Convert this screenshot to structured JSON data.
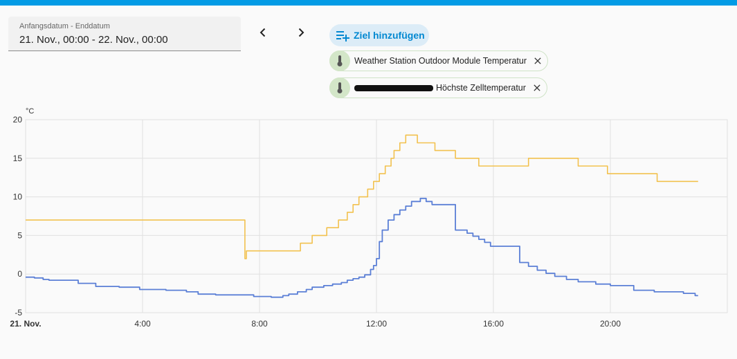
{
  "date_range": {
    "label": "Anfangsdatum - Enddatum",
    "value": "21. Nov., 00:00 - 22. Nov., 00:00"
  },
  "nav": {
    "prev_icon": "chevron-left-icon",
    "next_icon": "chevron-right-icon"
  },
  "add_target": {
    "label": "Ziel hinzufügen",
    "icon": "playlist-plus-icon"
  },
  "targets": [
    {
      "label": "Weather Station Outdoor Module Temperatur",
      "icon": "thermometer-icon",
      "remove_icon": "close-icon"
    },
    {
      "label_prefix": "",
      "label": "Höchste Zelltemperatur",
      "icon": "thermometer-icon",
      "remove_icon": "close-icon"
    }
  ],
  "colors": {
    "accent": "#039be5",
    "series_orange": "#f2c14e",
    "series_blue": "#5b7fd6"
  },
  "chart_data": {
    "type": "line",
    "ylabel": "°C",
    "ylim": [
      -5,
      20
    ],
    "yticks": [
      "20",
      "15",
      "10",
      "5",
      "0",
      "-5"
    ],
    "xlim": [
      0,
      24
    ],
    "xticks": [
      "21. Nov.",
      "4:00",
      "8:00",
      "12:00",
      "16:00",
      "20:00"
    ],
    "grid": true,
    "series": [
      {
        "step": true,
        "points": [
          [
            0,
            7
          ],
          [
            7.5,
            7
          ],
          [
            7.5,
            2
          ],
          [
            7.55,
            3
          ],
          [
            9.4,
            3
          ],
          [
            9.4,
            4
          ],
          [
            9.8,
            4
          ],
          [
            9.8,
            5
          ],
          [
            10.3,
            5
          ],
          [
            10.3,
            6
          ],
          [
            10.7,
            6
          ],
          [
            10.7,
            7
          ],
          [
            11.0,
            7
          ],
          [
            11.0,
            8
          ],
          [
            11.2,
            8
          ],
          [
            11.2,
            9
          ],
          [
            11.4,
            9
          ],
          [
            11.4,
            10
          ],
          [
            11.7,
            10
          ],
          [
            11.7,
            11
          ],
          [
            11.9,
            11
          ],
          [
            11.9,
            12
          ],
          [
            12.1,
            12
          ],
          [
            12.1,
            13
          ],
          [
            12.3,
            13
          ],
          [
            12.3,
            14
          ],
          [
            12.5,
            14
          ],
          [
            12.5,
            15
          ],
          [
            12.6,
            15
          ],
          [
            12.6,
            16
          ],
          [
            12.8,
            16
          ],
          [
            12.8,
            17
          ],
          [
            13.0,
            17
          ],
          [
            13.0,
            18
          ],
          [
            13.4,
            18
          ],
          [
            13.4,
            17
          ],
          [
            14.0,
            17
          ],
          [
            14.0,
            16
          ],
          [
            14.7,
            16
          ],
          [
            14.7,
            15
          ],
          [
            15.5,
            15
          ],
          [
            15.5,
            14
          ],
          [
            17.2,
            14
          ],
          [
            17.2,
            15
          ],
          [
            18.9,
            15
          ],
          [
            18.9,
            14
          ],
          [
            19.9,
            14
          ],
          [
            19.9,
            13
          ],
          [
            21.6,
            13
          ],
          [
            21.6,
            12
          ],
          [
            23,
            12
          ]
        ]
      },
      {
        "step": true,
        "points": [
          [
            0,
            -0.4
          ],
          [
            0.3,
            -0.5
          ],
          [
            0.6,
            -0.7
          ],
          [
            0.8,
            -0.8
          ],
          [
            1.8,
            -0.9
          ],
          [
            1.8,
            -1.2
          ],
          [
            2.4,
            -1.2
          ],
          [
            2.4,
            -1.6
          ],
          [
            3.2,
            -1.7
          ],
          [
            3.9,
            -1.7
          ],
          [
            3.9,
            -2.0
          ],
          [
            4.8,
            -2.1
          ],
          [
            5.5,
            -2.3
          ],
          [
            5.9,
            -2.3
          ],
          [
            5.9,
            -2.6
          ],
          [
            6.5,
            -2.7
          ],
          [
            7.8,
            -2.7
          ],
          [
            7.8,
            -2.9
          ],
          [
            8.4,
            -3.0
          ],
          [
            8.8,
            -2.8
          ],
          [
            9.0,
            -2.6
          ],
          [
            9.3,
            -2.3
          ],
          [
            9.6,
            -2.0
          ],
          [
            9.8,
            -1.7
          ],
          [
            10.2,
            -1.5
          ],
          [
            10.5,
            -1.3
          ],
          [
            10.8,
            -1.1
          ],
          [
            11.0,
            -0.8
          ],
          [
            11.2,
            -0.6
          ],
          [
            11.4,
            -0.4
          ],
          [
            11.6,
            -0.1
          ],
          [
            11.8,
            0.6
          ],
          [
            11.9,
            1.1
          ],
          [
            12.0,
            2.0
          ],
          [
            12.1,
            4.2
          ],
          [
            12.2,
            5.7
          ],
          [
            12.4,
            7.0
          ],
          [
            12.6,
            7.7
          ],
          [
            12.8,
            8.3
          ],
          [
            13.0,
            8.8
          ],
          [
            13.2,
            9.4
          ],
          [
            13.5,
            9.8
          ],
          [
            13.7,
            9.4
          ],
          [
            13.9,
            9.0
          ],
          [
            14.7,
            9.0
          ],
          [
            14.7,
            5.7
          ],
          [
            15.1,
            5.3
          ],
          [
            15.3,
            4.9
          ],
          [
            15.5,
            4.5
          ],
          [
            15.7,
            4.1
          ],
          [
            15.9,
            3.6
          ],
          [
            16.9,
            3.6
          ],
          [
            16.9,
            1.5
          ],
          [
            17.2,
            1.0
          ],
          [
            17.5,
            0.5
          ],
          [
            17.8,
            0.1
          ],
          [
            18.1,
            -0.3
          ],
          [
            18.5,
            -0.7
          ],
          [
            18.9,
            -1.0
          ],
          [
            19.5,
            -1.3
          ],
          [
            20.0,
            -1.5
          ],
          [
            20.8,
            -1.5
          ],
          [
            20.8,
            -2.1
          ],
          [
            21.5,
            -2.3
          ],
          [
            22.5,
            -2.5
          ],
          [
            22.9,
            -2.5
          ],
          [
            22.9,
            -2.8
          ],
          [
            23,
            -2.8
          ]
        ]
      }
    ]
  }
}
